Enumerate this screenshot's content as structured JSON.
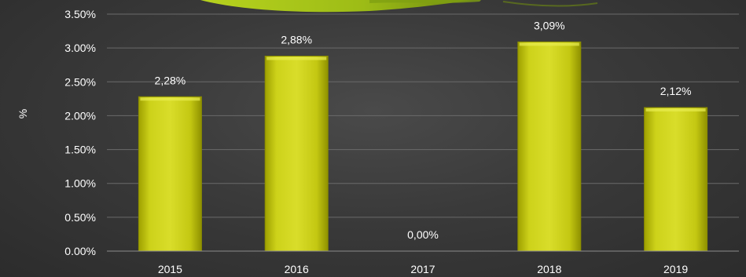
{
  "chart_data": {
    "type": "bar",
    "categories": [
      "2015",
      "2016",
      "2017",
      "2018",
      "2019"
    ],
    "values": [
      2.28,
      2.88,
      0.0,
      3.09,
      2.12
    ],
    "data_labels": [
      "2,28%",
      "2,88%",
      "0,00%",
      "3,09%",
      "2,12%"
    ],
    "ylabel": "%",
    "ylim": [
      0,
      3.5
    ],
    "y_ticks": [
      "0.00%",
      "0.50%",
      "1.00%",
      "1.50%",
      "2.00%",
      "2.50%",
      "3.00%",
      "3.50%"
    ],
    "grid": true,
    "colors": {
      "bar": "#c8cc10",
      "bar_highlight": "#e8ec50",
      "bar_shadow": "#8a8c00",
      "accent_swoosh": "#a6c21a"
    }
  }
}
